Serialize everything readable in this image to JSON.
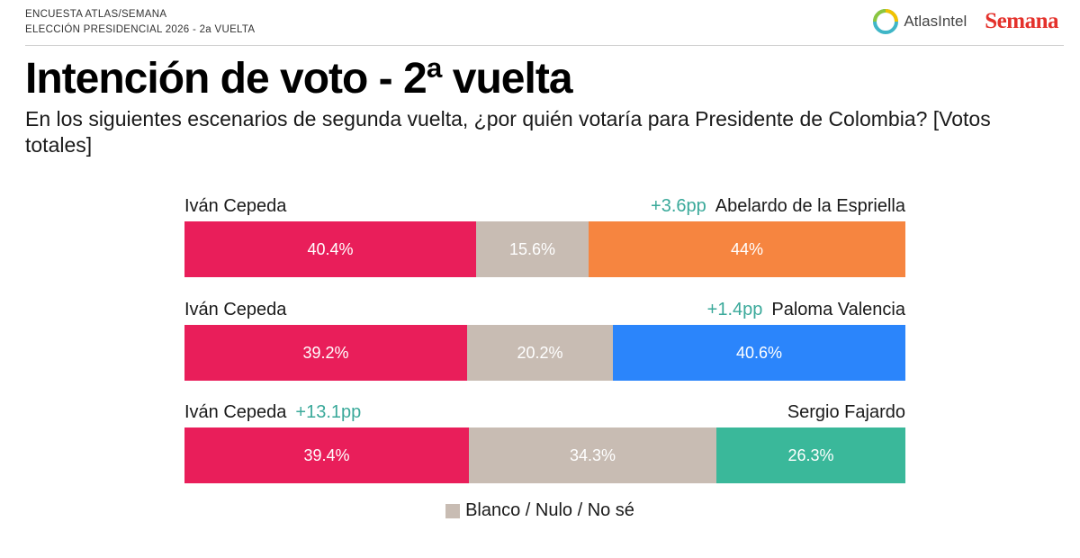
{
  "header": {
    "survey_line1": "ENCUESTA ATLAS/SEMANA",
    "survey_line2": "ELECCIÓN PRESIDENCIAL 2026 - 2a VUELTA",
    "logo_atlas": "AtlasIntel",
    "logo_semana": "Semana"
  },
  "colors": {
    "cepeda": "#e91e5a",
    "blank": "#c8bcb3",
    "espriella": "#f68540",
    "valencia": "#2b85fb",
    "fajardo": "#3ab89a",
    "diff_text": "#3aa99a"
  },
  "chart_data": {
    "type": "bar",
    "orientation": "horizontal-stacked-100",
    "title": "Intención de voto - 2ª vuelta",
    "subtitle": "En los siguientes escenarios de segunda vuelta, ¿por quién votaría para Presidente de Colombia? [Votos totales]",
    "legend": {
      "label": "Blanco / Nulo / No sé",
      "placement": "bottom-center"
    },
    "scenarios": [
      {
        "left_candidate": "Iván Cepeda",
        "right_candidate": "Abelardo de la Espriella",
        "difference_label": "+3.6pp",
        "difference_side": "right",
        "values": [
          40.4,
          15.6,
          44
        ],
        "value_labels": [
          "40.4%",
          "15.6%",
          "44%"
        ]
      },
      {
        "left_candidate": "Iván Cepeda",
        "right_candidate": "Paloma Valencia",
        "difference_label": "+1.4pp",
        "difference_side": "right",
        "values": [
          39.2,
          20.2,
          40.6
        ],
        "value_labels": [
          "39.2%",
          "20.2%",
          "40.6%"
        ]
      },
      {
        "left_candidate": "Iván Cepeda",
        "right_candidate": "Sergio Fajardo",
        "difference_label": "+13.1pp",
        "difference_side": "left",
        "values": [
          39.4,
          34.3,
          26.3
        ],
        "value_labels": [
          "39.4%",
          "34.3%",
          "26.3%"
        ]
      }
    ]
  }
}
